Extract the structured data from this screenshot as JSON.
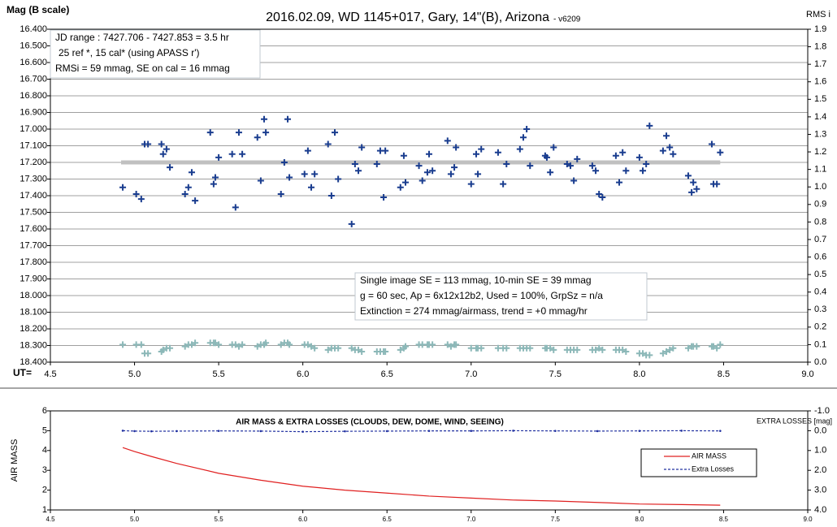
{
  "chart_data": [
    {
      "type": "scatter",
      "title": "2016.02.09, WD 1145+017, Gary, 14\"(B), Arizona",
      "title_suffix": "- v6209",
      "y_label": "Mag (B scale)",
      "y2_label": "RMS i",
      "x_label": "UT=",
      "x": [
        4.93,
        5.01,
        5.04,
        5.06,
        5.08,
        5.16,
        5.17,
        5.19,
        5.21,
        5.3,
        5.32,
        5.34,
        5.36,
        5.45,
        5.47,
        5.48,
        5.5,
        5.58,
        5.6,
        5.62,
        5.64,
        5.73,
        5.75,
        5.77,
        5.78,
        5.87,
        5.89,
        5.91,
        5.92,
        6.01,
        6.03,
        6.05,
        6.07,
        6.15,
        6.17,
        6.19,
        6.21,
        6.29,
        6.31,
        6.33,
        6.35,
        6.44,
        6.46,
        6.48,
        6.49,
        6.58,
        6.6,
        6.61,
        6.69,
        6.71,
        6.74,
        6.75,
        6.77,
        6.86,
        6.88,
        6.9,
        6.91,
        7.0,
        7.03,
        7.04,
        7.06,
        7.16,
        7.19,
        7.21,
        7.29,
        7.31,
        7.33,
        7.35,
        7.44,
        7.45,
        7.47,
        7.49,
        7.57,
        7.59,
        7.61,
        7.63,
        7.72,
        7.74,
        7.76,
        7.78,
        7.86,
        7.88,
        7.9,
        7.92,
        8.0,
        8.02,
        8.04,
        8.06,
        8.14,
        8.16,
        8.18,
        8.2,
        8.29,
        8.31,
        8.32,
        8.34,
        8.43,
        8.44,
        8.46,
        8.48
      ],
      "series": [
        {
          "color": "#1a3d8f",
          "marker": "plus",
          "values": [
            17.35,
            17.39,
            17.42,
            17.09,
            17.09,
            17.09,
            17.15,
            17.12,
            17.23,
            17.39,
            17.35,
            17.26,
            17.43,
            17.02,
            17.33,
            17.29,
            17.17,
            17.15,
            17.47,
            17.02,
            17.15,
            17.05,
            17.31,
            16.94,
            17.02,
            17.39,
            17.2,
            16.94,
            17.29,
            17.27,
            17.13,
            17.35,
            17.27,
            17.09,
            17.4,
            17.02,
            17.3,
            17.57,
            17.21,
            17.25,
            17.11,
            17.21,
            17.13,
            17.41,
            17.13,
            17.35,
            17.16,
            17.32,
            17.22,
            17.31,
            17.26,
            17.15,
            17.25,
            17.07,
            17.27,
            17.23,
            17.11,
            17.33,
            17.15,
            17.27,
            17.12,
            17.14,
            17.33,
            17.21,
            17.12,
            17.05,
            17.0,
            17.22,
            17.16,
            17.17,
            17.26,
            17.11,
            17.21,
            17.22,
            17.31,
            17.18,
            17.22,
            17.25,
            17.39,
            17.41,
            17.16,
            17.32,
            17.14,
            17.25,
            17.17,
            17.25,
            17.21,
            16.98,
            17.13,
            17.04,
            17.11,
            17.15,
            17.28,
            17.38,
            17.32,
            17.36,
            17.09,
            17.33,
            17.33,
            17.14
          ]
        },
        {
          "color": "#8cb8b8",
          "marker": "plus",
          "axis": "y2",
          "values": [
            0.1,
            0.1,
            0.1,
            0.05,
            0.05,
            0.06,
            0.07,
            0.08,
            0.08,
            0.09,
            0.1,
            0.1,
            0.11,
            0.11,
            0.11,
            0.11,
            0.1,
            0.1,
            0.1,
            0.09,
            0.1,
            0.09,
            0.1,
            0.1,
            0.11,
            0.1,
            0.11,
            0.11,
            0.1,
            0.1,
            0.1,
            0.09,
            0.08,
            0.07,
            0.08,
            0.08,
            0.08,
            0.08,
            0.07,
            0.07,
            0.06,
            0.06,
            0.06,
            0.06,
            0.06,
            0.07,
            0.08,
            0.09,
            0.1,
            0.1,
            0.1,
            0.1,
            0.1,
            0.1,
            0.09,
            0.1,
            0.1,
            0.08,
            0.08,
            0.08,
            0.08,
            0.08,
            0.08,
            0.08,
            0.08,
            0.08,
            0.08,
            0.08,
            0.08,
            0.08,
            0.08,
            0.07,
            0.07,
            0.07,
            0.07,
            0.07,
            0.07,
            0.07,
            0.08,
            0.07,
            0.07,
            0.07,
            0.07,
            0.06,
            0.05,
            0.05,
            0.04,
            0.04,
            0.05,
            0.06,
            0.07,
            0.08,
            0.08,
            0.09,
            0.09,
            0.09,
            0.09,
            0.09,
            0.08,
            0.1
          ]
        }
      ],
      "reference_line": {
        "value": 17.2,
        "x": [
          4.92,
          8.48
        ],
        "color": "#c0c0c0"
      },
      "annotations": [
        {
          "lines": [
            "JD range  : 7427.706 - 7427.853 = 3.5 hr",
            "25 ref *, 15 cal* (using APASS r')",
            "RMSi = 59 mmag, SE on cal = 16 mmag"
          ]
        },
        {
          "lines": [
            "Single image SE = 113 mmag, 10-min SE = 39 mmag",
            "g = 60 sec, Ap = 6x12x12b2, Used = 100%, GrpSz = n/a",
            "Extinction = 274 mmag/airmass, trend = +0 mmag/hr"
          ]
        }
      ],
      "xlim": [
        4.5,
        9.0
      ],
      "xticks": [
        4.5,
        {
          "value": 5,
          "label": "5.0"
        },
        5.5,
        {
          "value": 6,
          "label": "6.0"
        },
        6.5,
        {
          "value": 7,
          "label": "7.0"
        },
        7.5,
        {
          "value": 8,
          "label": "8.0"
        },
        8.5,
        {
          "value": 9,
          "label": "9.0"
        }
      ],
      "ylim": [
        18.4,
        16.4
      ],
      "yticks": [
        {
          "value": 16.4,
          "label": "16.400"
        },
        {
          "value": 16.5,
          "label": "16.500"
        },
        {
          "value": 16.6,
          "label": "16.600"
        },
        {
          "value": 16.7,
          "label": "16.700"
        },
        {
          "value": 16.8,
          "label": "16.800"
        },
        {
          "value": 16.9,
          "label": "16.900"
        },
        {
          "value": 17.0,
          "label": "17.000"
        },
        {
          "value": 17.1,
          "label": "17.100"
        },
        {
          "value": 17.2,
          "label": "17.200"
        },
        {
          "value": 17.3,
          "label": "17.300"
        },
        {
          "value": 17.4,
          "label": "17.400"
        },
        {
          "value": 17.5,
          "label": "17.500"
        },
        {
          "value": 17.6,
          "label": "17.600"
        },
        {
          "value": 17.7,
          "label": "17.700"
        },
        {
          "value": 17.8,
          "label": "17.800"
        },
        {
          "value": 17.9,
          "label": "17.900"
        },
        {
          "value": 18.0,
          "label": "18.000"
        },
        {
          "value": 18.1,
          "label": "18.100"
        },
        {
          "value": 18.2,
          "label": "18.200"
        },
        {
          "value": 18.3,
          "label": "18.300"
        },
        {
          "value": 18.4,
          "label": "18.400"
        }
      ],
      "y2lim": [
        0,
        1.9
      ],
      "y2ticks": [
        {
          "value": 0,
          "label": "0.0"
        },
        0.1,
        0.2,
        0.3,
        0.4,
        0.5,
        0.6,
        0.7,
        0.8,
        0.9,
        {
          "value": 1,
          "label": "1.0"
        },
        1.1,
        1.2,
        1.3,
        1.4,
        1.5,
        1.6,
        1.7,
        1.8,
        1.9
      ],
      "grid": true
    },
    {
      "type": "line",
      "title": "AIR MASS & EXTRA LOSSES (CLOUDS, DEW, DOME, WIND, SEEING)",
      "y_label": "AIR MASS",
      "y2_label": "EXTRA LOSSES [mag]",
      "x": [
        4.93,
        5.0,
        5.1,
        5.25,
        5.5,
        5.75,
        6.0,
        6.25,
        6.5,
        6.75,
        7.0,
        7.25,
        7.5,
        7.75,
        8.0,
        8.25,
        8.48
      ],
      "series": [
        {
          "name": "AIR MASS",
          "color": "#e02020",
          "line_style": "solid",
          "values": [
            4.15,
            3.95,
            3.7,
            3.35,
            2.85,
            2.5,
            2.2,
            2.0,
            1.85,
            1.7,
            1.6,
            1.5,
            1.45,
            1.38,
            1.3,
            1.27,
            1.24
          ]
        },
        {
          "name": "Extra Losses",
          "color": "#2030a0",
          "line_style": "dashed",
          "marker": "dot",
          "axis": "y2",
          "values": [
            0.0,
            0.02,
            0.03,
            0.02,
            0.01,
            0.02,
            0.05,
            0.03,
            0.02,
            0.01,
            0.01,
            0.0,
            0.01,
            0.02,
            0.01,
            0.0,
            0.01
          ]
        }
      ],
      "xlim": [
        4.5,
        9.0
      ],
      "xticks": [
        4.5,
        {
          "value": 5,
          "label": "5.0"
        },
        5.5,
        {
          "value": 6,
          "label": "6.0"
        },
        6.5,
        {
          "value": 7,
          "label": "7.0"
        },
        7.5,
        {
          "value": 8,
          "label": "8.0"
        },
        8.5,
        {
          "value": 9,
          "label": "9.0"
        }
      ],
      "ylim": [
        1,
        6
      ],
      "yticks": [
        1,
        2,
        3,
        4,
        5,
        6
      ],
      "y2lim": [
        4.0,
        -1.0
      ],
      "y2ticks": [
        {
          "value": -1,
          "label": "-1.0"
        },
        {
          "value": 0,
          "label": "0.0"
        },
        {
          "value": 1,
          "label": "1.0"
        },
        {
          "value": 2,
          "label": "2.0"
        },
        {
          "value": 3,
          "label": "3.0"
        },
        {
          "value": 4,
          "label": "4.0"
        }
      ],
      "legend": "right",
      "grid": false
    }
  ]
}
